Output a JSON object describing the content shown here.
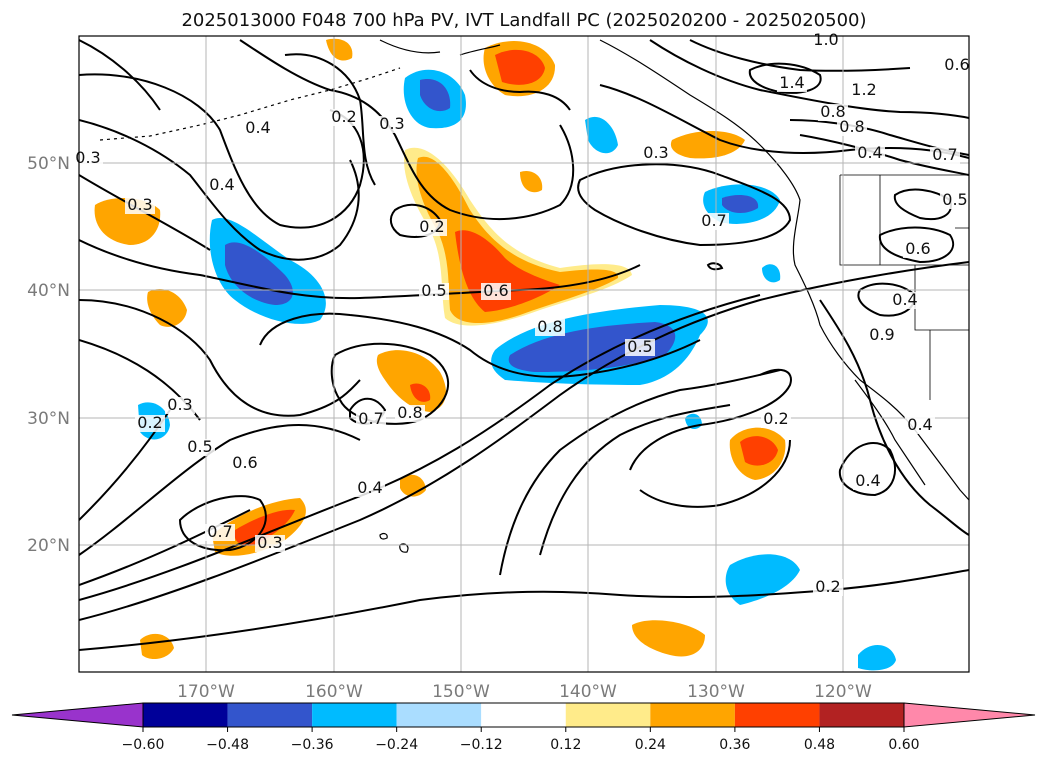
{
  "title": "2025013000 F048 700 hPa PV, IVT Landfall PC (2025020200 - 2025020500)",
  "map": {
    "lat_ticks": [
      "50°N",
      "40°N",
      "30°N",
      "20°N"
    ],
    "lon_ticks": [
      "170°W",
      "160°W",
      "150°W",
      "140°W",
      "130°W",
      "120°W"
    ],
    "grid": true,
    "coastline_color": "#000000"
  },
  "colorbar": {
    "tick_labels": [
      "−0.60",
      "−0.48",
      "−0.36",
      "−0.24",
      "−0.12",
      "0.12",
      "0.24",
      "0.36",
      "0.48",
      "0.60"
    ],
    "colors": [
      "#9933cc",
      "#000099",
      "#3355cc",
      "#00bbff",
      "#aaddff",
      "#ffffff",
      "#ffeb8a",
      "#ffa500",
      "#ff4000",
      "#b22222",
      "#ff88aa"
    ],
    "extend": "both"
  },
  "contour_labels": [
    "0.3",
    "0.4",
    "0.2",
    "0.3",
    "1.0",
    "1.4",
    "1.2",
    "0.8",
    "0.8",
    "0.6",
    "0.4",
    "0.7",
    "0.5",
    "0.6",
    "0.4",
    "0.9",
    "0.4",
    "0.2",
    "0.5",
    "0.6",
    "0.8",
    "0.5",
    "0.7",
    "0.7",
    "0.8",
    "0.3",
    "0.5",
    "0.6",
    "0.4",
    "0.3",
    "0.2",
    "0.7",
    "0.3",
    "0.2",
    "0.4",
    "0.3",
    "0.4",
    "0.2"
  ]
}
